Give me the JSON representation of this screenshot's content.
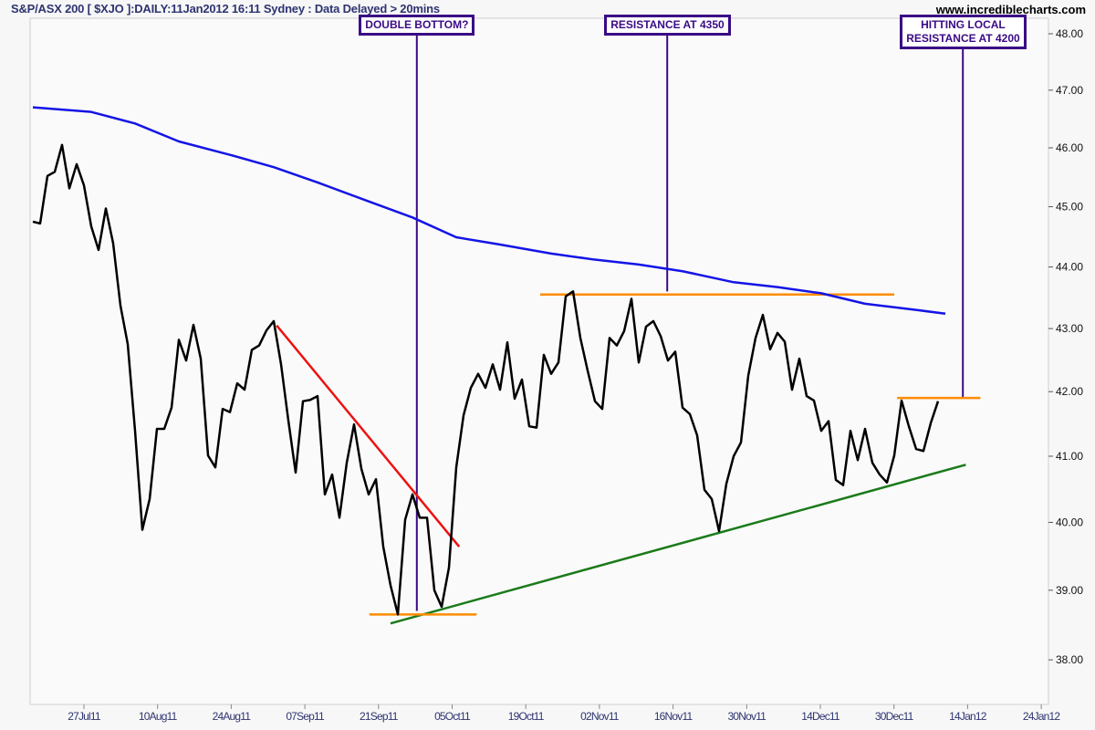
{
  "header": {
    "title": "S&P/ASX 200 [ $XJO ]:DAILY:11Jan2012 16:11 Sydney : Data Delayed > 20mins",
    "site": "www.incrediblecharts.com"
  },
  "chart_data": {
    "type": "line",
    "title": "S&P/ASX 200 [ $XJO ]:DAILY:11Jan2012 16:11 Sydney : Data Delayed > 20mins",
    "y_scale": "log",
    "ylim": [
      37.4,
      48.3
    ],
    "y_ticks": [
      "48.00",
      "47.00",
      "46.00",
      "45.00",
      "44.00",
      "43.00",
      "42.00",
      "41.00",
      "40.00",
      "39.00",
      "38.00"
    ],
    "x_ticks": [
      "27Jul11",
      "10Aug11",
      "24Aug11",
      "07Sep11",
      "21Sep11",
      "05Oct11",
      "19Oct11",
      "02Nov11",
      "16Nov11",
      "30Nov11",
      "14Dec11",
      "30Dec11",
      "14Jan12",
      "24Jan12"
    ],
    "series": [
      {
        "name": "price",
        "color": "#000000",
        "values": [
          44.75,
          44.72,
          45.52,
          45.59,
          46.05,
          45.31,
          45.72,
          45.36,
          44.67,
          44.28,
          44.97,
          44.39,
          43.37,
          42.75,
          41.39,
          39.89,
          40.35,
          41.42,
          41.42,
          41.75,
          42.82,
          42.49,
          43.06,
          42.52,
          41.01,
          40.83,
          41.73,
          41.68,
          42.13,
          42.03,
          42.66,
          42.73,
          42.97,
          43.12,
          42.43,
          41.55,
          40.75,
          41.85,
          41.87,
          41.93,
          40.42,
          40.72,
          40.07,
          40.9,
          41.49,
          40.81,
          40.42,
          40.65,
          39.64,
          39.07,
          38.65,
          40.04,
          40.42,
          40.07,
          40.07,
          39.0,
          38.76,
          39.33,
          40.83,
          41.63,
          42.06,
          42.28,
          42.06,
          42.43,
          42.03,
          42.78,
          41.89,
          42.19,
          41.46,
          41.44,
          42.58,
          42.28,
          42.46,
          43.52,
          43.6,
          42.85,
          42.33,
          41.85,
          41.73,
          42.85,
          42.73,
          42.96,
          43.48,
          42.46,
          43.03,
          43.12,
          42.88,
          42.49,
          42.63,
          41.75,
          41.65,
          41.32,
          40.49,
          40.35,
          39.87,
          40.58,
          41.0,
          41.21,
          42.25,
          42.85,
          43.22,
          42.67,
          42.93,
          42.79,
          42.03,
          42.52,
          41.93,
          41.86,
          41.39,
          41.54,
          40.64,
          40.56,
          41.39,
          40.94,
          41.42,
          40.9,
          40.72,
          40.6,
          41.01,
          41.86,
          41.46,
          41.11,
          41.08,
          41.51,
          41.85
        ]
      },
      {
        "name": "moving-average",
        "color": "#1414e6",
        "points": [
          [
            0,
            46.7
          ],
          [
            8,
            46.62
          ],
          [
            14,
            46.42
          ],
          [
            20,
            46.11
          ],
          [
            27,
            45.88
          ],
          [
            33,
            45.67
          ],
          [
            39,
            45.41
          ],
          [
            46,
            45.09
          ],
          [
            52,
            44.82
          ],
          [
            58,
            44.49
          ],
          [
            64,
            44.37
          ],
          [
            71,
            44.22
          ],
          [
            77,
            44.12
          ],
          [
            83,
            44.04
          ],
          [
            89,
            43.93
          ],
          [
            96,
            43.75
          ],
          [
            102,
            43.67
          ],
          [
            108,
            43.57
          ],
          [
            114,
            43.4
          ],
          [
            121,
            43.3
          ],
          [
            125,
            43.24
          ]
        ]
      }
    ],
    "annotations": {
      "lines": [
        {
          "name": "downtrend-line",
          "color": "#ee1111",
          "from": [
            33.4,
            43.05
          ],
          "to": [
            58.4,
            39.64
          ]
        },
        {
          "name": "uptrend-support-line",
          "color": "#1a7a1a",
          "from": [
            49,
            38.52
          ],
          "to": [
            127.8,
            40.87
          ]
        },
        {
          "name": "double-bottom-support",
          "color": "#ff8c00",
          "from": [
            46.1,
            38.65
          ],
          "to": [
            60.8,
            38.65
          ]
        },
        {
          "name": "resistance-4350-line",
          "color": "#ff8c00",
          "from": [
            69.5,
            43.55
          ],
          "to": [
            118,
            43.55
          ]
        },
        {
          "name": "local-resistance-4200-line",
          "color": "#ff8c00",
          "from": [
            118.4,
            41.9
          ],
          "to": [
            129.8,
            41.9
          ]
        }
      ],
      "callouts": [
        {
          "text": "DOUBLE BOTTOM?",
          "index": 52.6,
          "value": 38.7
        },
        {
          "text": "RESISTANCE AT 4350",
          "index": 86.9,
          "value": 43.6
        },
        {
          "text": "HITTING LOCAL\nRESISTANCE AT 4200",
          "index": 127.4,
          "value": 41.9
        }
      ],
      "callout_color": "#3a0a85"
    }
  }
}
